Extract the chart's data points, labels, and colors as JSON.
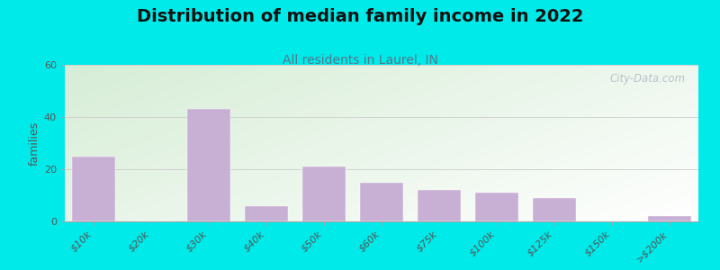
{
  "title": "Distribution of median family income in 2022",
  "subtitle": "All residents in Laurel, IN",
  "ylabel": "families",
  "categories": [
    "$10k",
    "$20k",
    "$30k",
    "$40k",
    "$50k",
    "$60k",
    "$75k",
    "$100k",
    "$125k",
    "$150k",
    ">$200k"
  ],
  "values": [
    25,
    0,
    43,
    6,
    21,
    15,
    12,
    11,
    9,
    0,
    2
  ],
  "ylim": [
    0,
    60
  ],
  "yticks": [
    0,
    20,
    40,
    60
  ],
  "bar_color": "#c8afd4",
  "background_outer": "#00eaea",
  "watermark": "City-Data.com",
  "title_fontsize": 14,
  "subtitle_fontsize": 10,
  "ylabel_fontsize": 9,
  "tick_label_fontsize": 8,
  "grad_left": "#d8ede0",
  "grad_right": "#f8f8f8",
  "grad_top": "#d8ede0",
  "grad_bottom": "#ffffff"
}
